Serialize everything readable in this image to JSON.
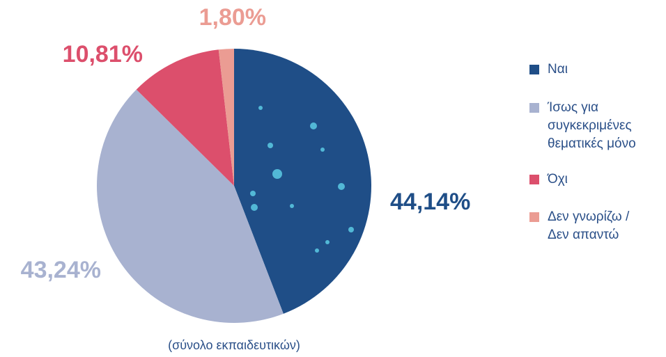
{
  "chart_data": {
    "type": "pie",
    "caption": "(σύνολο εκπαιδευτικών)",
    "categories": [
      "Ναι",
      "Ίσως για συγκεκριμένες θεματικές μόνο",
      "Όχι",
      "Δεν γνωρίζω / Δεν απαντώ"
    ],
    "values": [
      44.14,
      43.24,
      10.81,
      1.8
    ],
    "value_labels": [
      "44,14%",
      "43,24%",
      "10,81%",
      "1,80%"
    ],
    "colors": [
      "#1f4e87",
      "#a8b2d0",
      "#dc4f6c",
      "#eb9c93"
    ],
    "legend": "right"
  }
}
